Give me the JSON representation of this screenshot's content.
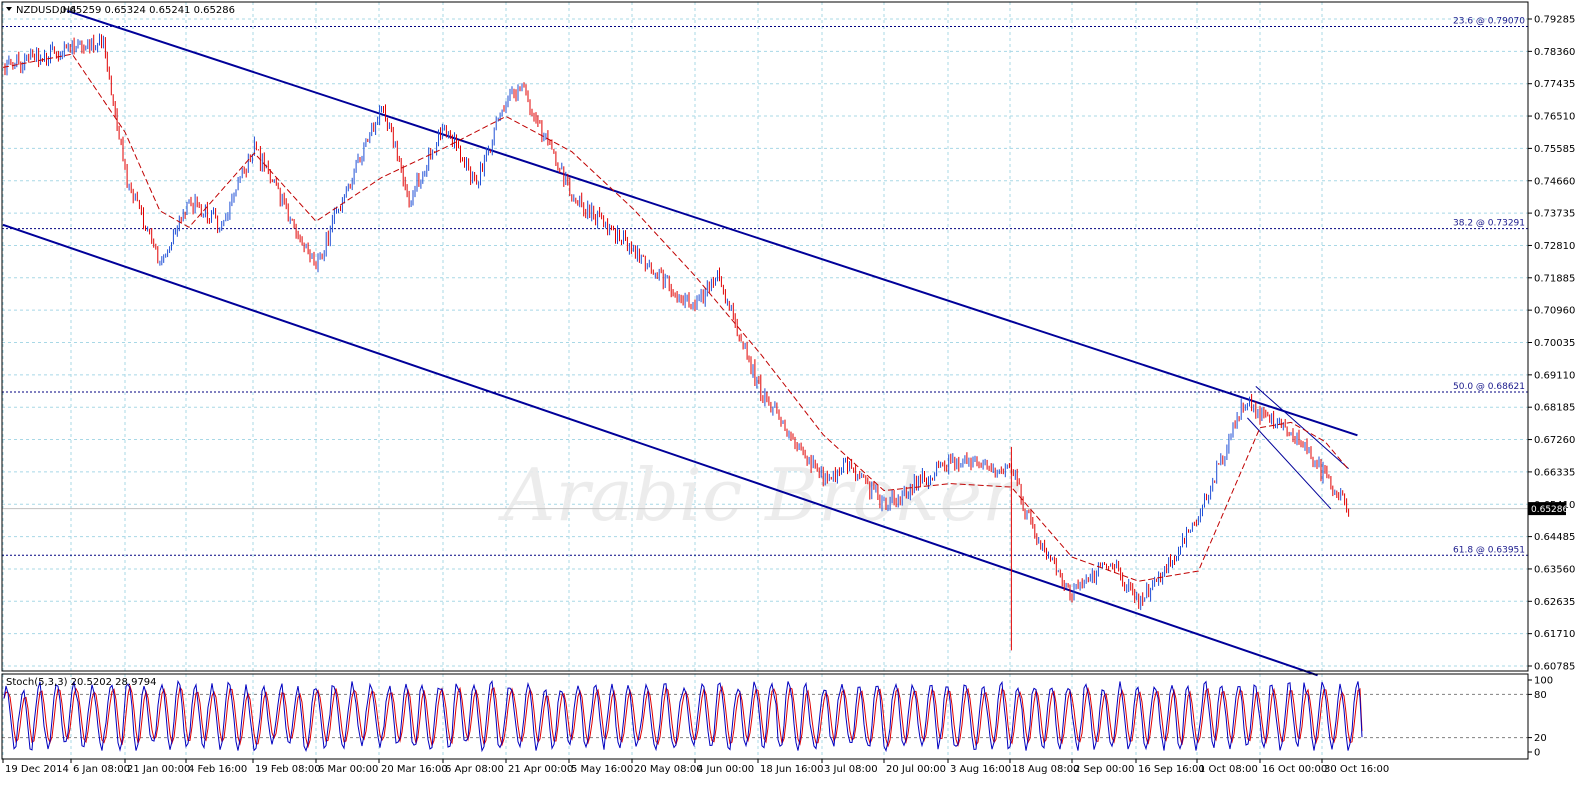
{
  "window": {
    "title": "NZDUSD,H4",
    "ohlc": "0.65259 0.65324 0.65241 0.65286",
    "watermark": "Arabic Broker"
  },
  "colors": {
    "background": "#ffffff",
    "grid": "#a8d8e6",
    "candle_up": "#1f4fd6",
    "candle_down": "#e00000",
    "moving_average": "#c00000",
    "channel": "#000099",
    "fib_line": "#000080",
    "stoch_main": "#0000c0",
    "stoch_signal": "#e00000"
  },
  "chart_data": [
    {
      "type": "candlestick",
      "title": "NZDUSD,H4",
      "ohlc_last": {
        "open": 0.65259,
        "high": 0.65324,
        "low": 0.65241,
        "close": 0.65286
      },
      "current_price_label": "0.65286",
      "ylim": [
        0.6052,
        0.7955
      ],
      "y_ticks": [
        "0.79285",
        "0.78360",
        "0.77435",
        "0.76510",
        "0.75585",
        "0.74660",
        "0.73735",
        "0.72810",
        "0.71885",
        "0.70960",
        "0.70035",
        "0.69110",
        "0.68185",
        "0.67260",
        "0.66335",
        "0.65410",
        "0.64485",
        "0.63560",
        "0.62635",
        "0.61710",
        "0.60785"
      ],
      "x_ticks": [
        "19 Dec 2014",
        "6 Jan 08:00",
        "21 Jan 00:00",
        "4 Feb 16:00",
        "19 Feb 08:00",
        "6 Mar 00:00",
        "20 Mar 16:00",
        "6 Apr 08:00",
        "21 Apr 00:00",
        "5 May 16:00",
        "20 May 08:00",
        "4 Jun 00:00",
        "18 Jun 16:00",
        "3 Jul 08:00",
        "20 Jul 00:00",
        "3 Aug 16:00",
        "18 Aug 08:00",
        "2 Sep 00:00",
        "16 Sep 16:00",
        "1 Oct 08:00",
        "16 Oct 00:00",
        "30 Oct 16:00"
      ],
      "close_path": {
        "x": [
          "19 Dec 2014",
          "6 Jan 08:00",
          "15 Jan",
          "21 Jan 00:00",
          "29 Jan",
          "4 Feb 16:00",
          "12 Feb",
          "19 Feb 08:00",
          "6 Mar 00:00",
          "11 Mar",
          "20 Mar 16:00",
          "28 Mar",
          "6 Apr 08:00",
          "14 Apr",
          "21 Apr 00:00",
          "25 Apr",
          "5 May 16:00",
          "20 May 08:00",
          "4 Jun 00:00",
          "9 Jun",
          "18 Jun 16:00",
          "3 Jul 08:00",
          "10 Jul",
          "20 Jul 00:00",
          "3 Aug 16:00",
          "18 Aug 08:00",
          "24 Aug",
          "2 Sep 00:00",
          "10 Sep",
          "16 Sep 16:00",
          "1 Oct 08:00",
          "12 Oct",
          "16 Oct 00:00",
          "23 Oct",
          "30 Oct 16:00",
          "5 Nov"
        ],
        "y": [
          0.7795,
          0.7845,
          0.7869,
          0.7489,
          0.7223,
          0.7407,
          0.7339,
          0.7558,
          0.7218,
          0.7385,
          0.7685,
          0.7412,
          0.7623,
          0.7458,
          0.7702,
          0.7726,
          0.7423,
          0.7268,
          0.7098,
          0.7195,
          0.686,
          0.661,
          0.666,
          0.654,
          0.666,
          0.664,
          0.645,
          0.6285,
          0.6382,
          0.6255,
          0.6495,
          0.6835,
          0.68,
          0.675,
          0.662,
          0.6529
        ]
      },
      "moving_average": {
        "x": [
          "19 Dec 2014",
          "6 Jan 08:00",
          "21 Jan 00:00",
          "29 Jan",
          "4 Feb 16:00",
          "19 Feb 08:00",
          "6 Mar 00:00",
          "20 Mar 16:00",
          "6 Apr 08:00",
          "21 Apr 00:00",
          "5 May 16:00",
          "20 May 08:00",
          "4 Jun 00:00",
          "18 Jun 16:00",
          "3 Jul 08:00",
          "20 Jul 00:00",
          "3 Aug 16:00",
          "18 Aug 08:00",
          "2 Sep 00:00",
          "16 Sep 16:00",
          "1 Oct 08:00",
          "16 Oct 00:00",
          "23 Oct",
          "30 Oct 16:00",
          "5 Nov"
        ],
        "y": [
          0.779,
          0.7828,
          0.7605,
          0.738,
          0.7333,
          0.7545,
          0.735,
          0.7475,
          0.756,
          0.765,
          0.7549,
          0.7385,
          0.7194,
          0.697,
          0.674,
          0.658,
          0.66,
          0.659,
          0.639,
          0.6321,
          0.635,
          0.676,
          0.6775,
          0.672,
          0.664
        ]
      },
      "channels": [
        {
          "name": "upper-channel",
          "from": {
            "x": "5 Jan",
            "y": 0.7952
          },
          "to": {
            "x": "7 Nov",
            "y": 0.6738
          }
        },
        {
          "name": "lower-channel",
          "from": {
            "x": "19 Dec 2014",
            "y": 0.734
          },
          "to": {
            "x": "29 Oct",
            "y": 0.6052
          }
        },
        {
          "name": "short-upper",
          "from": {
            "x": "15 Oct",
            "y": 0.6878
          },
          "to": {
            "x": "5 Nov",
            "y": 0.6643
          }
        },
        {
          "name": "short-lower",
          "from": {
            "x": "13 Oct",
            "y": 0.6788
          },
          "to": {
            "x": "1 Nov",
            "y": 0.6528
          }
        }
      ],
      "spike": {
        "x": "18 Aug 08:00",
        "high": 0.6705,
        "low": 0.6123
      },
      "fibonacci": [
        {
          "label": "23.6 @ 0.79070",
          "price": 0.7907
        },
        {
          "label": "38.2 @ 0.73291",
          "price": 0.73291
        },
        {
          "label": "50.0 @ 0.68621",
          "price": 0.68621
        },
        {
          "label": "61.8 @ 0.63951",
          "price": 0.63951
        }
      ]
    },
    {
      "type": "line",
      "title": "Stoch(5,3,3) 20.5202 28.9794",
      "ylim": [
        0,
        100
      ],
      "y_ticks": [
        "100",
        "80",
        "20",
        "0"
      ],
      "levels": [
        80,
        20
      ],
      "series": [
        {
          "name": "main",
          "last": 20.5202
        },
        {
          "name": "signal",
          "last": 28.9794
        }
      ]
    }
  ]
}
